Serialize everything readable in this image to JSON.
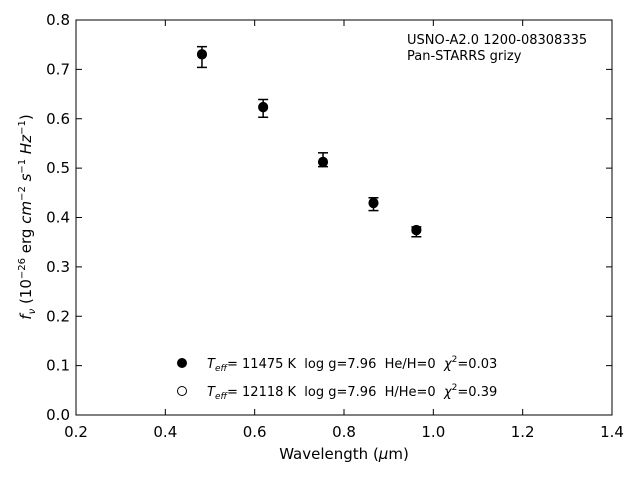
{
  "chart_data": {
    "type": "scatter",
    "annotation": [
      "USNO-A2.0 1200-08308335",
      "Pan-STARRS grizy"
    ],
    "xlabel": {
      "prefix": "Wavelength (",
      "symbol": "μ",
      "suffix": "m)"
    },
    "ylabel": {
      "f": "f",
      "sub": "ν",
      "pre": " (10",
      "exp": "−26",
      "mid": " erg ",
      "cm": "cm",
      "cmexp": "−2",
      "s": " s",
      "sexp": "−1",
      "hz": " Hz",
      "hzexp": "−1",
      "post": ")"
    },
    "xlim": [
      0.2,
      1.4
    ],
    "ylim": [
      0.0,
      0.8
    ],
    "xticks": [
      0.2,
      0.4,
      0.6,
      0.8,
      1.0,
      1.2,
      1.4
    ],
    "xtick_labels": [
      "0.2",
      "0.4",
      "0.6",
      "0.8",
      "1.0",
      "1.2",
      "1.4"
    ],
    "yticks": [
      0.0,
      0.1,
      0.2,
      0.3,
      0.4,
      0.5,
      0.6,
      0.7,
      0.8
    ],
    "ytick_labels": [
      "0.0",
      "0.1",
      "0.2",
      "0.3",
      "0.4",
      "0.5",
      "0.6",
      "0.7",
      "0.8"
    ],
    "observed": {
      "x": [
        0.482,
        0.619,
        0.753,
        0.866,
        0.962
      ],
      "y": [
        0.725,
        0.621,
        0.517,
        0.427,
        0.371
      ],
      "yerr": [
        0.021,
        0.018,
        0.014,
        0.013,
        0.01
      ]
    },
    "series": [
      {
        "marker": "filled",
        "x": [
          0.482,
          0.619,
          0.753,
          0.866,
          0.962
        ],
        "y": [
          0.73,
          0.623,
          0.512,
          0.43,
          0.375
        ],
        "legend": {
          "teff_sym": "T",
          "teff_sub": "eff",
          "text": "= 11475 K  log g=7.96  He/H=0  ",
          "chi": "χ",
          "chi_exp": "2",
          "chi_val": "=0.03"
        }
      },
      {
        "marker": "open",
        "x": [
          0.482,
          0.619,
          0.753,
          0.866,
          0.962
        ],
        "y": [
          0.731,
          0.624,
          0.513,
          0.429,
          0.374
        ],
        "legend": {
          "teff_sym": "T",
          "teff_sub": "eff",
          "text": "= 12118 K  log g=7.96  H/He=0  ",
          "chi": "χ",
          "chi_exp": "2",
          "chi_val": "=0.39"
        }
      }
    ],
    "colors": {
      "axis": "#000000",
      "marker": "#000000",
      "background": "#ffffff"
    },
    "grid": false,
    "legend_placement": "lower-center"
  }
}
